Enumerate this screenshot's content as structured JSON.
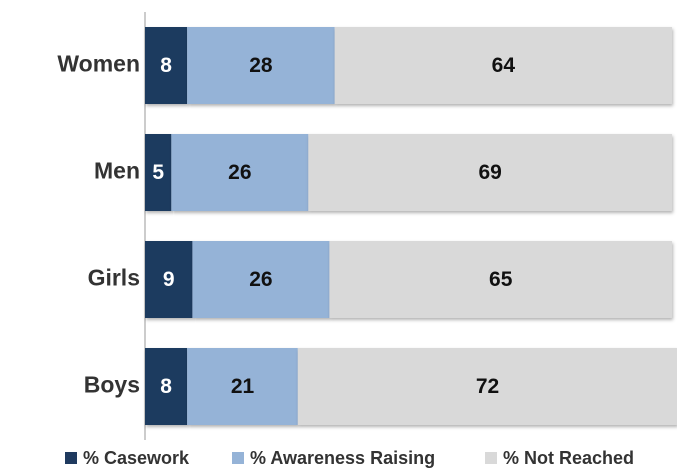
{
  "chart_data": {
    "type": "stacked_barh",
    "categories": [
      "Women",
      "Men",
      "Girls",
      "Boys"
    ],
    "series": [
      {
        "name": "% Casework",
        "color": "#1f3a5f",
        "values": [
          8,
          5,
          9,
          8
        ]
      },
      {
        "name": "% Awareness Raising",
        "color": "#95b3d7",
        "values": [
          28,
          26,
          26,
          21
        ]
      },
      {
        "name": "% Not Reached",
        "color": "#d9d9d9",
        "values": [
          64,
          69,
          65,
          72
        ]
      }
    ],
    "xlim": [
      0,
      100
    ],
    "legend": "bottom"
  }
}
